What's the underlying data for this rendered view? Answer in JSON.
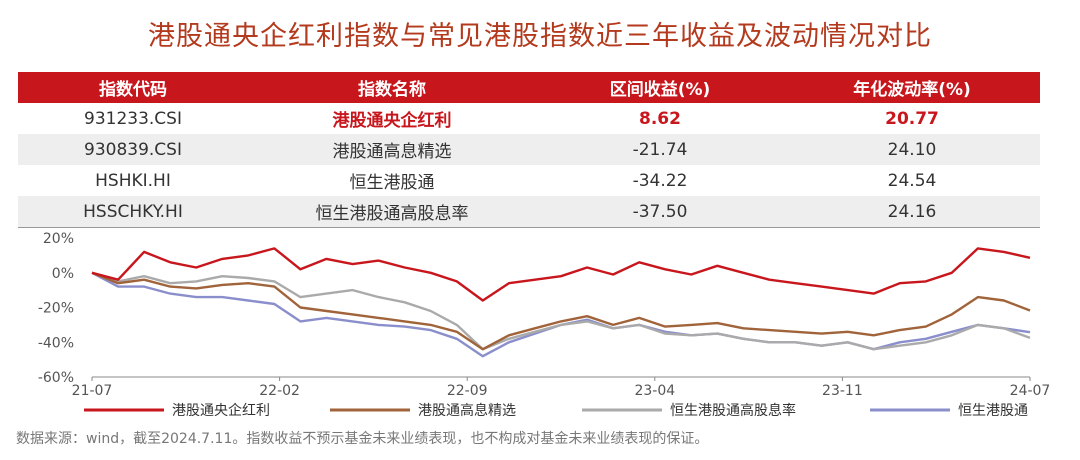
{
  "title": "港股通央企红利指数与常见港股指数近三年收益及波动情况对比",
  "table": {
    "headers": [
      "指数代码",
      "指数名称",
      "区间收益(%)",
      "年化波动率(%)"
    ],
    "rows": [
      {
        "code": "931233.CSI",
        "name": "港股通央企红利",
        "ret": "8.62",
        "vol": "20.77"
      },
      {
        "code": "930839.CSI",
        "name": "港股通高息精选",
        "ret": "-21.74",
        "vol": "24.10"
      },
      {
        "code": "HSHKI.HI",
        "name": "恒生港股通",
        "ret": "-34.22",
        "vol": "24.54"
      },
      {
        "code": "HSSCHKY.HI",
        "name": "恒生港股通高股息率",
        "ret": "-37.50",
        "vol": "24.16"
      }
    ]
  },
  "chart_data": {
    "type": "line",
    "ylim": [
      -60,
      20
    ],
    "yticks": [
      "20%",
      "0%",
      "-20%",
      "-40%",
      "-60%"
    ],
    "xticks": [
      "21-07",
      "22-02",
      "22-09",
      "23-04",
      "23-11",
      "24-07"
    ],
    "series": [
      {
        "name": "港股通央企红利",
        "color": "#c8161d",
        "x": [
          "2021-07",
          "2021-08",
          "2021-09",
          "2021-10",
          "2021-11",
          "2021-12",
          "2022-01",
          "2022-02",
          "2022-03",
          "2022-04",
          "2022-05",
          "2022-06",
          "2022-07",
          "2022-08",
          "2022-09",
          "2022-10",
          "2022-11",
          "2022-12",
          "2023-01",
          "2023-02",
          "2023-03",
          "2023-04",
          "2023-05",
          "2023-06",
          "2023-07",
          "2023-08",
          "2023-09",
          "2023-10",
          "2023-11",
          "2023-12",
          "2024-01",
          "2024-02",
          "2024-03",
          "2024-04",
          "2024-05",
          "2024-06",
          "2024-07"
        ],
        "values": [
          0,
          -4,
          12,
          6,
          3,
          8,
          10,
          14,
          2,
          8,
          5,
          7,
          3,
          0,
          -5,
          -16,
          -6,
          -4,
          -2,
          3,
          -1,
          6,
          2,
          -1,
          4,
          0,
          -4,
          -6,
          -8,
          -10,
          -12,
          -6,
          -5,
          0,
          14,
          12,
          8.62
        ]
      },
      {
        "name": "港股通高息精选",
        "color": "#a0633a",
        "x": [
          "2021-07",
          "2021-08",
          "2021-09",
          "2021-10",
          "2021-11",
          "2021-12",
          "2022-01",
          "2022-02",
          "2022-03",
          "2022-04",
          "2022-05",
          "2022-06",
          "2022-07",
          "2022-08",
          "2022-09",
          "2022-10",
          "2022-11",
          "2022-12",
          "2023-01",
          "2023-02",
          "2023-03",
          "2023-04",
          "2023-05",
          "2023-06",
          "2023-07",
          "2023-08",
          "2023-09",
          "2023-10",
          "2023-11",
          "2023-12",
          "2024-01",
          "2024-02",
          "2024-03",
          "2024-04",
          "2024-05",
          "2024-06",
          "2024-07"
        ],
        "values": [
          0,
          -6,
          -4,
          -8,
          -9,
          -7,
          -6,
          -8,
          -20,
          -22,
          -24,
          -26,
          -28,
          -30,
          -34,
          -44,
          -36,
          -32,
          -28,
          -25,
          -30,
          -26,
          -31,
          -30,
          -29,
          -32,
          -33,
          -34,
          -35,
          -34,
          -36,
          -33,
          -31,
          -24,
          -14,
          -16,
          -21.74
        ]
      },
      {
        "name": "恒生港股通高股息率",
        "color": "#aaaaaa",
        "x": [
          "2021-07",
          "2021-08",
          "2021-09",
          "2021-10",
          "2021-11",
          "2021-12",
          "2022-01",
          "2022-02",
          "2022-03",
          "2022-04",
          "2022-05",
          "2022-06",
          "2022-07",
          "2022-08",
          "2022-09",
          "2022-10",
          "2022-11",
          "2022-12",
          "2023-01",
          "2023-02",
          "2023-03",
          "2023-04",
          "2023-05",
          "2023-06",
          "2023-07",
          "2023-08",
          "2023-09",
          "2023-10",
          "2023-11",
          "2023-12",
          "2024-01",
          "2024-02",
          "2024-03",
          "2024-04",
          "2024-05",
          "2024-06",
          "2024-07"
        ],
        "values": [
          0,
          -5,
          -2,
          -6,
          -5,
          -2,
          -3,
          -5,
          -14,
          -12,
          -10,
          -14,
          -17,
          -22,
          -30,
          -44,
          -38,
          -34,
          -30,
          -28,
          -32,
          -30,
          -35,
          -36,
          -35,
          -38,
          -40,
          -40,
          -42,
          -40,
          -44,
          -42,
          -40,
          -36,
          -30,
          -32,
          -37.5
        ]
      },
      {
        "name": "恒生港股通",
        "color": "#8a8fcc",
        "x": [
          "2021-07",
          "2021-08",
          "2021-09",
          "2021-10",
          "2021-11",
          "2021-12",
          "2022-01",
          "2022-02",
          "2022-03",
          "2022-04",
          "2022-05",
          "2022-06",
          "2022-07",
          "2022-08",
          "2022-09",
          "2022-10",
          "2022-11",
          "2022-12",
          "2023-01",
          "2023-02",
          "2023-03",
          "2023-04",
          "2023-05",
          "2023-06",
          "2023-07",
          "2023-08",
          "2023-09",
          "2023-10",
          "2023-11",
          "2023-12",
          "2024-01",
          "2024-02",
          "2024-03",
          "2024-04",
          "2024-05",
          "2024-06",
          "2024-07"
        ],
        "values": [
          0,
          -8,
          -8,
          -12,
          -14,
          -14,
          -16,
          -18,
          -28,
          -26,
          -28,
          -30,
          -31,
          -33,
          -38,
          -48,
          -40,
          -35,
          -30,
          -27,
          -32,
          -30,
          -34,
          -36,
          -35,
          -38,
          -40,
          -40,
          -42,
          -40,
          -44,
          -40,
          -38,
          -34,
          -30,
          -32,
          -34.22
        ]
      }
    ]
  },
  "legend": [
    "港股通央企红利",
    "港股通高息精选",
    "恒生港股通高股息率",
    "恒生港股通"
  ],
  "note": "数据来源：wind，截至2024.7.11。指数收益不预示基金未来业绩表现，也不构成对基金未来业绩表现的保证。"
}
